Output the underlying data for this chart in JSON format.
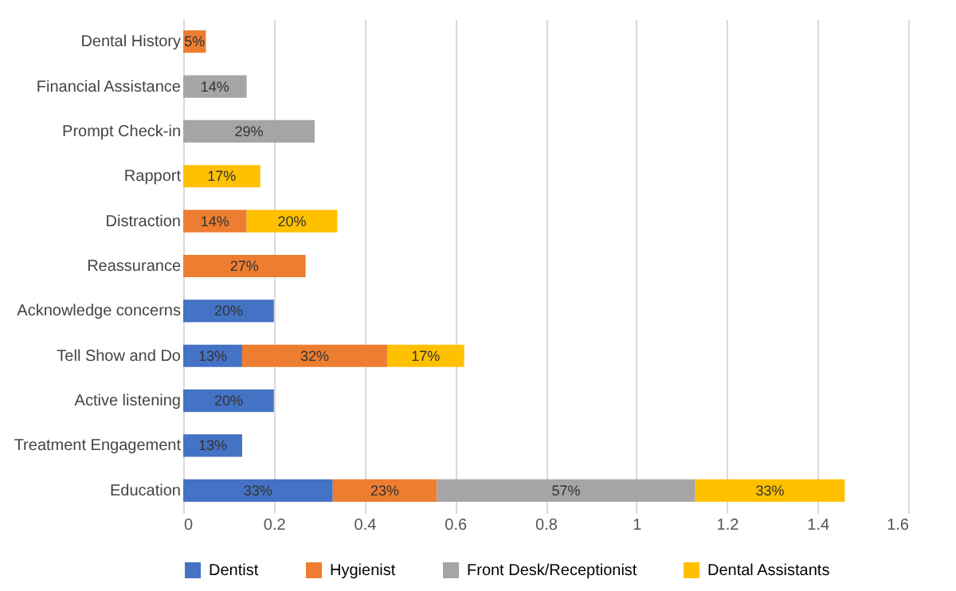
{
  "chart_data": {
    "type": "bar",
    "orientation": "horizontal",
    "stacked": true,
    "categories": [
      "Dental History",
      "Financial Assistance",
      "Prompt Check-in",
      "Rapport",
      "Distraction",
      "Reassurance",
      "Acknowledge concerns",
      "Tell Show and Do",
      "Active listening",
      "Treatment Engagement",
      "Education"
    ],
    "series": [
      {
        "name": "Dentist",
        "color": "#4472c4",
        "values": [
          null,
          null,
          null,
          null,
          null,
          null,
          0.2,
          0.13,
          0.2,
          0.13,
          0.33
        ],
        "value_labels": [
          null,
          null,
          null,
          null,
          null,
          null,
          "20%",
          "13%",
          "20%",
          "13%",
          "33%"
        ]
      },
      {
        "name": "Hygienist",
        "color": "#ed7d31",
        "values": [
          0.05,
          null,
          null,
          null,
          0.14,
          0.27,
          null,
          0.32,
          null,
          null,
          0.23
        ],
        "value_labels": [
          "5%",
          null,
          null,
          null,
          "14%",
          "27%",
          null,
          "32%",
          null,
          null,
          "23%"
        ]
      },
      {
        "name": "Front Desk/Receptionist",
        "color": "#a5a5a5",
        "values": [
          null,
          0.14,
          0.29,
          null,
          null,
          null,
          null,
          null,
          null,
          null,
          0.57
        ],
        "value_labels": [
          null,
          "14%",
          "29%",
          null,
          null,
          null,
          null,
          null,
          null,
          null,
          "57%"
        ]
      },
      {
        "name": "Dental Assistants",
        "color": "#ffc000",
        "values": [
          null,
          null,
          null,
          0.17,
          0.2,
          null,
          null,
          0.17,
          null,
          null,
          0.33
        ],
        "value_labels": [
          null,
          null,
          null,
          "17%",
          "20%",
          null,
          null,
          "17%",
          null,
          null,
          "33%"
        ]
      }
    ],
    "xlim": [
      0,
      1.6
    ],
    "xticks": [
      0,
      0.2,
      0.4,
      0.6,
      0.8,
      1,
      1.2,
      1.4,
      1.6
    ],
    "grid": "x",
    "legend": "bottom"
  }
}
